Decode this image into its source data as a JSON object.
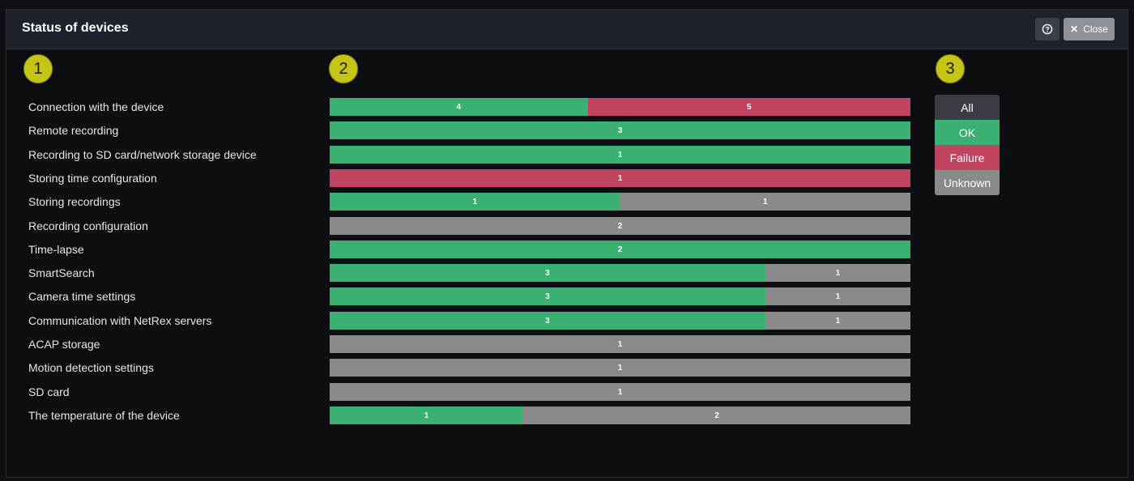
{
  "window": {
    "title": "Status of devices",
    "close_label": "Close"
  },
  "markers": [
    "1",
    "2",
    "3"
  ],
  "colors": {
    "ok": "#3bb073",
    "failure": "#c0445f",
    "unknown": "#8a8a8a",
    "all": "#3a3d44",
    "marker": "#c4c516"
  },
  "rows": [
    {
      "label": "Connection with the device",
      "ok": 4,
      "failure": 5,
      "unknown": 0
    },
    {
      "label": "Remote recording",
      "ok": 3,
      "failure": 0,
      "unknown": 0
    },
    {
      "label": "Recording to SD card/network storage device",
      "ok": 1,
      "failure": 0,
      "unknown": 0
    },
    {
      "label": "Storing time configuration",
      "ok": 0,
      "failure": 1,
      "unknown": 0
    },
    {
      "label": "Storing recordings",
      "ok": 1,
      "failure": 0,
      "unknown": 1
    },
    {
      "label": "Recording configuration",
      "ok": 0,
      "failure": 0,
      "unknown": 2
    },
    {
      "label": "Time-lapse",
      "ok": 2,
      "failure": 0,
      "unknown": 0
    },
    {
      "label": "SmartSearch",
      "ok": 3,
      "failure": 0,
      "unknown": 1
    },
    {
      "label": "Camera time settings",
      "ok": 3,
      "failure": 0,
      "unknown": 1
    },
    {
      "label": "Communication with NetRex servers",
      "ok": 3,
      "failure": 0,
      "unknown": 1
    },
    {
      "label": "ACAP storage",
      "ok": 0,
      "failure": 0,
      "unknown": 1
    },
    {
      "label": "Motion detection settings",
      "ok": 0,
      "failure": 0,
      "unknown": 1
    },
    {
      "label": "SD card",
      "ok": 0,
      "failure": 0,
      "unknown": 1
    },
    {
      "label": "The temperature of the device",
      "ok": 1,
      "failure": 0,
      "unknown": 2
    }
  ],
  "legend": [
    {
      "key": "all",
      "label": "All"
    },
    {
      "key": "ok",
      "label": "OK"
    },
    {
      "key": "failure",
      "label": "Failure"
    },
    {
      "key": "unknown",
      "label": "Unknown"
    }
  ]
}
